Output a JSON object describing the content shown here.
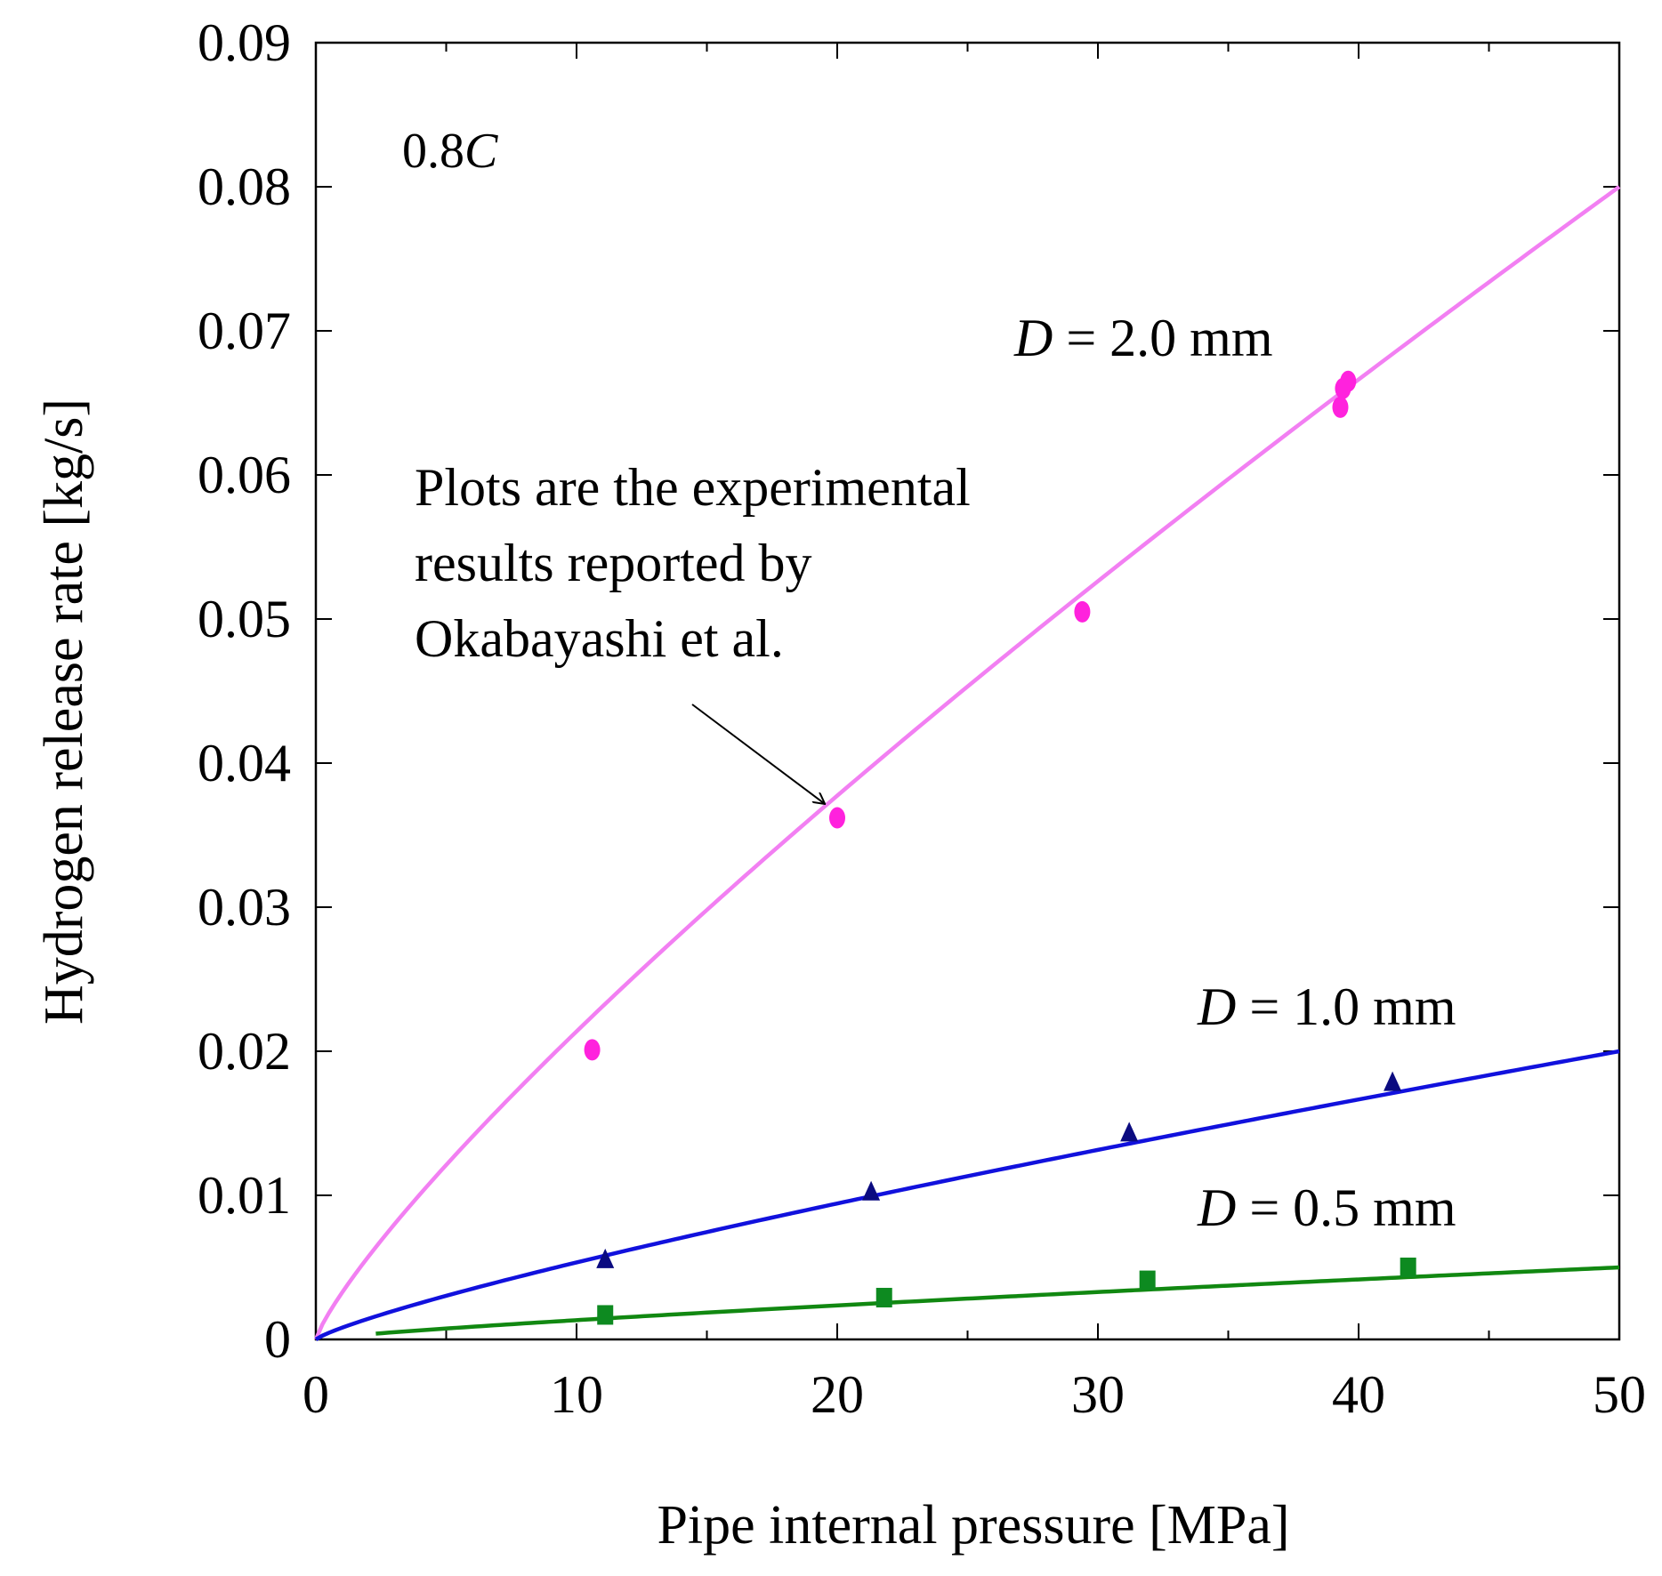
{
  "chart_data": {
    "type": "line",
    "title": "",
    "xlabel": "Pipe internal pressure [MPa]",
    "ylabel": "Hydrogen release rate [kg/s]",
    "xlim": [
      0,
      50
    ],
    "ylim": [
      0,
      0.09
    ],
    "x_ticks": [
      "0",
      "10",
      "20",
      "30",
      "40",
      "50"
    ],
    "y_ticks": [
      "0",
      "0.01",
      "0.02",
      "0.03",
      "0.04",
      "0.05",
      "0.06",
      "0.07",
      "0.08",
      "0.09"
    ],
    "x_tick_values": [
      0,
      10,
      20,
      30,
      40,
      50
    ],
    "y_tick_values": [
      0,
      0.01,
      0.02,
      0.03,
      0.04,
      0.05,
      0.06,
      0.07,
      0.08,
      0.09
    ],
    "grid": false,
    "corner_label": {
      "text": "0.8",
      "italic": "C"
    },
    "annotation": {
      "lines": [
        "Plots are the experimental",
        "results reported by",
        "Okabayashi et al."
      ],
      "arrow_target": {
        "x": 19.5,
        "y": 0.0372
      }
    },
    "series": [
      {
        "name": "D = 2.0 mm",
        "label_italic": "D",
        "label_rest": " = 2.0 mm",
        "color": "#f27ff2",
        "marker": "circle",
        "marker_color": "#ff22dd",
        "curve": {
          "x_start": 0,
          "x_end": 50,
          "coef": 0.08,
          "exponent": 0.82
        },
        "points": [
          {
            "x": 10.6,
            "y": 0.0201
          },
          {
            "x": 20.0,
            "y": 0.0362
          },
          {
            "x": 29.4,
            "y": 0.0505
          },
          {
            "x": 39.3,
            "y": 0.0647
          },
          {
            "x": 39.4,
            "y": 0.066
          },
          {
            "x": 39.6,
            "y": 0.0665
          }
        ]
      },
      {
        "name": "D = 1.0 mm",
        "label_italic": "D",
        "label_rest": " = 1.0 mm",
        "color": "#1111dd",
        "marker": "triangle",
        "marker_color": "#0b0b80",
        "curve": {
          "x_start": 0,
          "x_end": 50,
          "coef": 0.02,
          "exponent": 0.82
        },
        "points": [
          {
            "x": 11.1,
            "y": 0.0055
          },
          {
            "x": 21.3,
            "y": 0.0102
          },
          {
            "x": 31.2,
            "y": 0.0143
          },
          {
            "x": 41.3,
            "y": 0.0178
          }
        ]
      },
      {
        "name": "D = 0.5 mm",
        "label_italic": "D",
        "label_rest": " = 0.5 mm",
        "color": "#118811",
        "marker": "square",
        "marker_color": "#0d8a20",
        "curve": {
          "x_start": 2.3,
          "x_end": 50,
          "coef": 0.005,
          "exponent": 0.82
        },
        "points": [
          {
            "x": 11.1,
            "y": 0.0017
          },
          {
            "x": 21.8,
            "y": 0.0029
          },
          {
            "x": 31.9,
            "y": 0.0041
          },
          {
            "x": 41.9,
            "y": 0.005
          }
        ]
      }
    ]
  }
}
